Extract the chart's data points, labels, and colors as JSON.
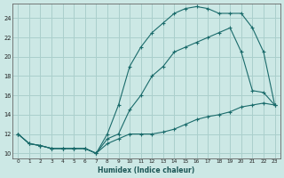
{
  "xlabel": "Humidex (Indice chaleur)",
  "background_color": "#cce8e5",
  "grid_color": "#aacfcc",
  "line_color": "#1a6b6b",
  "xlim": [
    -0.5,
    23.5
  ],
  "ylim": [
    9.5,
    25.5
  ],
  "yticks": [
    10,
    12,
    14,
    16,
    18,
    20,
    22,
    24
  ],
  "xticks": [
    0,
    1,
    2,
    3,
    4,
    5,
    6,
    7,
    8,
    9,
    10,
    11,
    12,
    13,
    14,
    15,
    16,
    17,
    18,
    19,
    20,
    21,
    22,
    23
  ],
  "line1_x": [
    0,
    1,
    2,
    3,
    4,
    5,
    6,
    7,
    8,
    9,
    10,
    11,
    12,
    13,
    14,
    15,
    16,
    17,
    18,
    19,
    20,
    21,
    22,
    23
  ],
  "line1_y": [
    12.0,
    11.0,
    10.8,
    10.5,
    10.5,
    10.5,
    10.5,
    10.0,
    11.0,
    11.5,
    12.0,
    12.0,
    12.0,
    12.2,
    12.5,
    13.0,
    13.5,
    13.8,
    14.0,
    14.3,
    14.8,
    15.0,
    15.2,
    15.0
  ],
  "line2_x": [
    0,
    1,
    2,
    3,
    4,
    5,
    6,
    7,
    8,
    9,
    10,
    11,
    12,
    13,
    14,
    15,
    16,
    17,
    18,
    19,
    20,
    21,
    22,
    23
  ],
  "line2_y": [
    12.0,
    11.0,
    10.8,
    10.5,
    10.5,
    10.5,
    10.5,
    10.0,
    11.5,
    12.0,
    14.5,
    16.0,
    18.0,
    19.0,
    20.5,
    21.0,
    21.5,
    22.0,
    22.5,
    23.0,
    20.5,
    16.5,
    16.3,
    15.0
  ],
  "line3_x": [
    0,
    1,
    2,
    3,
    4,
    5,
    6,
    7,
    8,
    9,
    10,
    11,
    12,
    13,
    14,
    15,
    16,
    17,
    18,
    19,
    20,
    21,
    22,
    23
  ],
  "line3_y": [
    12.0,
    11.0,
    10.8,
    10.5,
    10.5,
    10.5,
    10.5,
    10.0,
    12.0,
    15.0,
    19.0,
    21.0,
    22.5,
    23.5,
    24.5,
    25.0,
    25.2,
    25.0,
    24.5,
    24.5,
    24.5,
    23.0,
    20.5,
    15.0
  ]
}
